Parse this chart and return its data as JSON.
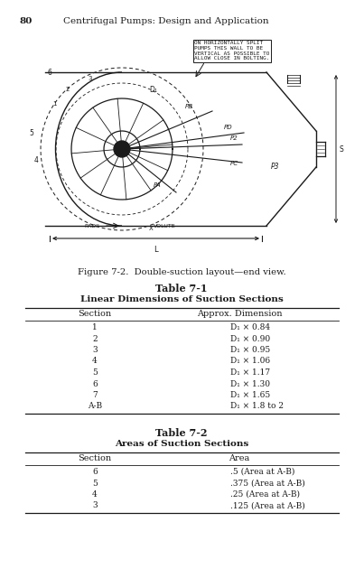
{
  "page_number": "80",
  "header_text": "Centrifugal Pumps: Design and Application",
  "figure_caption": "Figure 7-2.  Double-suction layout—end view.",
  "annotation_box": "ON HORIZONTALLY SPLIT\nPUMPS THIS WALL TO BE\nVERTICAL AS POSSIBLE TO\nALLOW CLOSE IN BOLTING.",
  "table1_title": "Table 7-1",
  "table1_subtitle": "Linear Dimensions of Suction Sections",
  "table1_col1": "Section",
  "table1_col2": "Approx. Dimension",
  "table1_rows": [
    [
      "1",
      "D₁ × 0.84"
    ],
    [
      "2",
      "D₁ × 0.90"
    ],
    [
      "3",
      "D₁ × 0.95"
    ],
    [
      "4",
      "D₁ × 1.06"
    ],
    [
      "5",
      "D₁ × 1.17"
    ],
    [
      "6",
      "D₁ × 1.30"
    ],
    [
      "7",
      "D₁ × 1.65"
    ],
    [
      "A-B",
      "D₁ × 1.8 to 2"
    ]
  ],
  "table2_title": "Table 7-2",
  "table2_subtitle": "Areas of Suction Sections",
  "table2_col1": "Section",
  "table2_col2": "Area",
  "table2_rows": [
    [
      "6",
      ".5 (Area at A-B)"
    ],
    [
      "5",
      ".375 (Area at A-B)"
    ],
    [
      "4",
      ".25 (Area at A-B)"
    ],
    [
      "3",
      ".125 (Area at A-B)"
    ]
  ],
  "bg_color": "#ffffff",
  "text_color": "#1a1a1a",
  "diagram_color": "#1a1a1a"
}
